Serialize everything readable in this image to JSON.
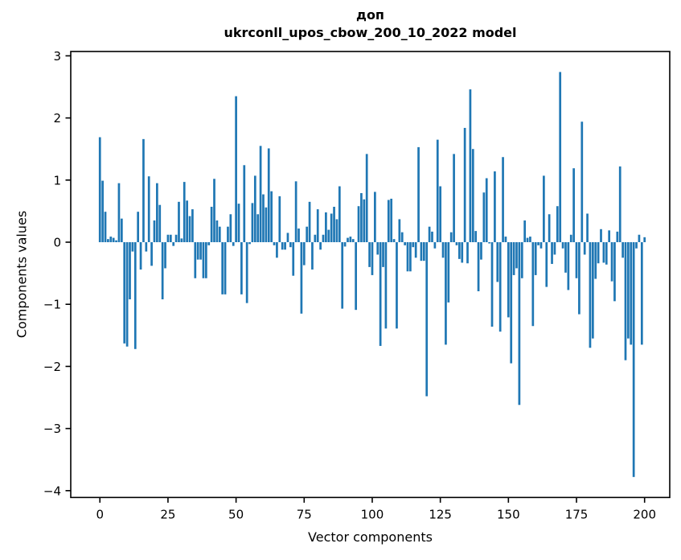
{
  "figure": {
    "title_line1": "доп",
    "title_line2": "ukrconll_upos_cbow_200_10_2022 model"
  },
  "chart_data": {
    "type": "bar",
    "title": "доп\nukrconll_upos_cbow_200_10_2022 model",
    "xlabel": "Vector components",
    "ylabel": "Components values",
    "bar_color": "#1f77b4",
    "axis_color": "#000000",
    "background": "#ffffff",
    "grid": false,
    "legend_position": "none",
    "x_start": 0,
    "x_ticks": [
      0,
      25,
      50,
      75,
      100,
      125,
      150,
      175,
      200
    ],
    "y_ticks": [
      3,
      2,
      1,
      0,
      -1,
      -2,
      -3,
      -4
    ],
    "y_tick_labels": [
      "3",
      "2",
      "1",
      "0",
      "−1",
      "−2",
      "−3",
      "−4"
    ],
    "xlim": [
      -10.7,
      209.24
    ],
    "ylim": [
      -4.11,
      3.07
    ],
    "values": [
      1.69,
      0.99,
      0.49,
      0.05,
      0.09,
      0.07,
      0.03,
      0.95,
      0.38,
      -1.63,
      -1.68,
      -0.92,
      -0.15,
      -1.72,
      0.49,
      -0.44,
      1.66,
      -0.15,
      1.06,
      -0.38,
      0.35,
      0.95,
      0.6,
      -0.92,
      -0.42,
      0.12,
      0.12,
      -0.06,
      0.12,
      0.65,
      0.06,
      0.97,
      0.67,
      0.42,
      0.53,
      -0.58,
      -0.28,
      -0.28,
      -0.58,
      -0.58,
      -0.05,
      0.57,
      1.02,
      0.35,
      0.25,
      -0.84,
      -0.84,
      0.25,
      0.45,
      -0.06,
      2.35,
      0.62,
      -0.84,
      1.24,
      -0.98,
      -0.03,
      0.63,
      1.07,
      0.45,
      1.55,
      0.77,
      0.56,
      1.51,
      0.82,
      -0.05,
      -0.25,
      0.74,
      -0.12,
      -0.12,
      0.15,
      -0.08,
      -0.54,
      0.98,
      0.22,
      -1.15,
      -0.37,
      0.25,
      0.65,
      -0.44,
      0.12,
      0.53,
      -0.12,
      0.12,
      0.48,
      0.2,
      0.46,
      0.57,
      0.37,
      0.9,
      -1.07,
      -0.07,
      0.07,
      0.09,
      0.05,
      -1.09,
      0.58,
      0.79,
      0.69,
      1.42,
      -0.4,
      -0.53,
      0.81,
      -0.2,
      -1.67,
      -0.4,
      -1.39,
      0.68,
      0.7,
      0.05,
      -1.39,
      0.37,
      0.16,
      -0.05,
      -0.47,
      -0.47,
      -0.08,
      -0.25,
      1.53,
      -0.3,
      -0.3,
      -2.48,
      0.25,
      0.17,
      -0.1,
      1.65,
      0.9,
      -0.25,
      -1.65,
      -0.97,
      0.16,
      1.42,
      -0.05,
      -0.27,
      -0.33,
      1.84,
      -0.34,
      2.46,
      1.5,
      0.18,
      -0.79,
      -0.28,
      0.8,
      1.03,
      -0.02,
      -1.36,
      1.14,
      -0.64,
      -1.44,
      1.37,
      0.09,
      -1.21,
      -1.95,
      -0.53,
      -0.42,
      -2.62,
      -0.58,
      0.35,
      0.07,
      0.09,
      -1.35,
      -0.53,
      -0.05,
      -0.1,
      1.07,
      -0.72,
      0.45,
      -0.35,
      -0.2,
      0.58,
      2.74,
      -0.1,
      -0.49,
      -0.77,
      0.12,
      1.19,
      -0.58,
      -1.16,
      1.94,
      -0.2,
      0.46,
      -1.7,
      -1.55,
      -0.59,
      -0.34,
      0.21,
      -0.33,
      -0.36,
      0.19,
      -0.63,
      -0.95,
      0.17,
      1.22,
      -0.25,
      -1.9,
      -1.55,
      -1.65,
      -3.78,
      -0.1,
      0.12,
      -1.65,
      0.08
    ]
  }
}
